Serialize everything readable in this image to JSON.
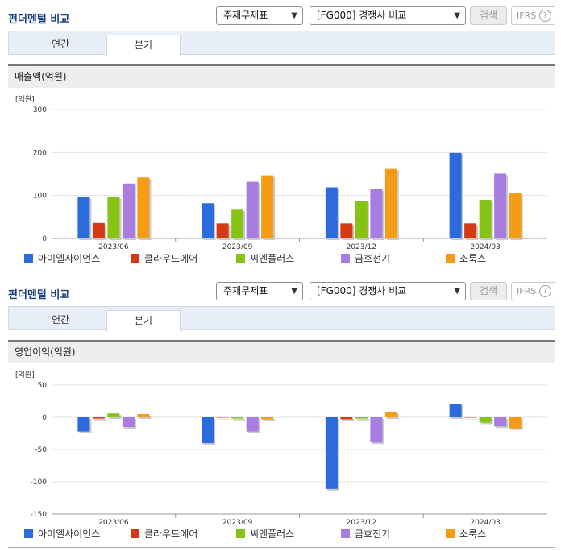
{
  "header": {
    "title": "펀더멘털 비교",
    "select1": "주재무제표",
    "select2": "[FG000] 경쟁사 비교",
    "search_label": "검색",
    "ifrs_label": "IFRS",
    "help_glyph": "?"
  },
  "tabs": [
    {
      "label": "연간"
    },
    {
      "label": "분기"
    }
  ],
  "colors": [
    "#2b6bde",
    "#d43b14",
    "#86c315",
    "#a77de0",
    "#f59c14"
  ],
  "legend": [
    {
      "label": "아이엘사이언스"
    },
    {
      "label": "클라우드에어"
    },
    {
      "label": "씨엔플러스"
    },
    {
      "label": "금호전기"
    },
    {
      "label": "소룩스"
    }
  ],
  "chart_data": [
    {
      "type": "bar",
      "title": "매출액(억원)",
      "ylabel": "[억원]",
      "categories": [
        "2023/06",
        "2023/09",
        "2023/12",
        "2024/03"
      ],
      "ylim": [
        0,
        300
      ],
      "yticks": [
        0,
        100,
        200,
        300
      ],
      "series": [
        {
          "name": "아이엘사이언스",
          "values": [
            97,
            82,
            119,
            199
          ]
        },
        {
          "name": "클라우드에어",
          "values": [
            36,
            35,
            35,
            35
          ]
        },
        {
          "name": "씨엔플러스",
          "values": [
            97,
            67,
            88,
            90
          ]
        },
        {
          "name": "금호전기",
          "values": [
            128,
            132,
            115,
            151
          ]
        },
        {
          "name": "소룩스",
          "values": [
            142,
            147,
            162,
            105
          ]
        }
      ]
    },
    {
      "type": "bar",
      "title": "영업이익(억원)",
      "ylabel": "[억원]",
      "categories": [
        "2023/06",
        "2023/09",
        "2023/12",
        "2024/03"
      ],
      "ylim": [
        -150,
        50
      ],
      "yticks": [
        -150,
        -100,
        -50,
        0,
        50
      ],
      "series": [
        {
          "name": "아이엘사이언스",
          "values": [
            -22,
            -40,
            -111,
            20
          ]
        },
        {
          "name": "클라우드에어",
          "values": [
            -2,
            0,
            -3,
            0
          ]
        },
        {
          "name": "씨엔플러스",
          "values": [
            6,
            -2,
            -2,
            -8
          ]
        },
        {
          "name": "금호전기",
          "values": [
            -15,
            -22,
            -39,
            -14
          ]
        },
        {
          "name": "소룩스",
          "values": [
            5,
            -3,
            8,
            -17
          ]
        }
      ]
    }
  ]
}
